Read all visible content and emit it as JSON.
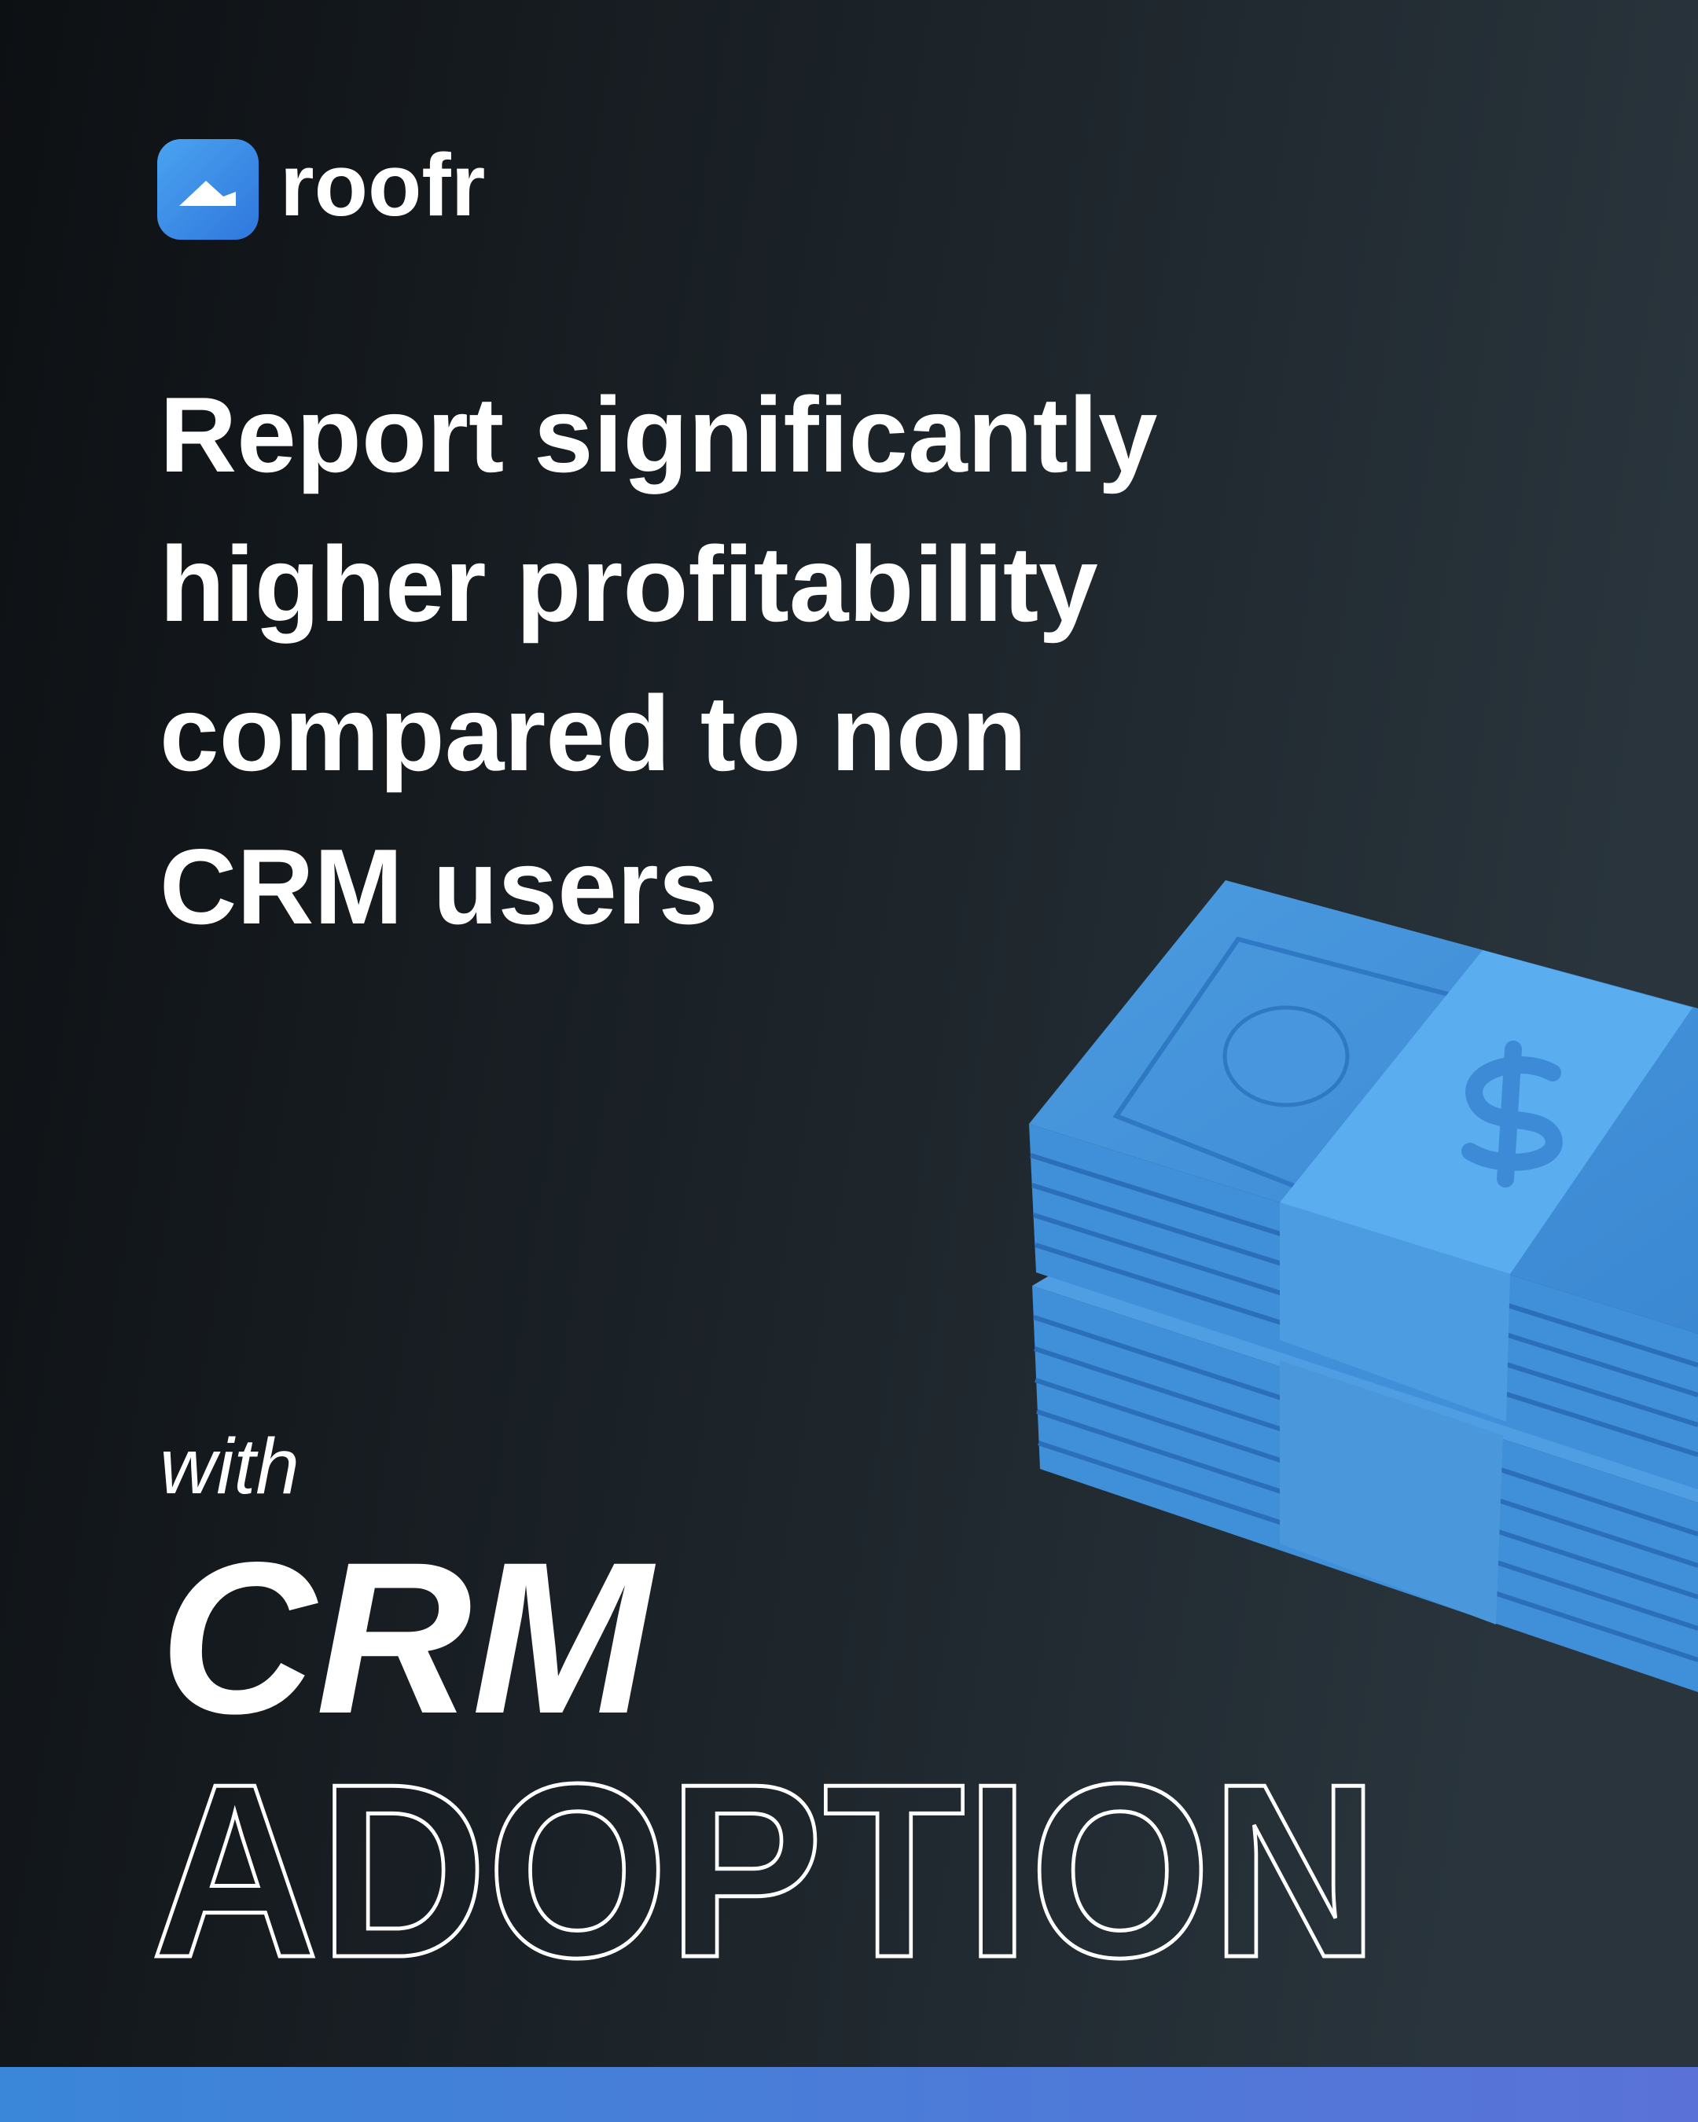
{
  "logo": {
    "wordmark": "roofr"
  },
  "headline": {
    "lines": [
      "Report significantly",
      "higher profitability",
      "compared to non",
      "CRM users"
    ]
  },
  "tagline": {
    "prefix": "with",
    "emphasis": "CRM",
    "outline": "ADOPTION"
  }
}
